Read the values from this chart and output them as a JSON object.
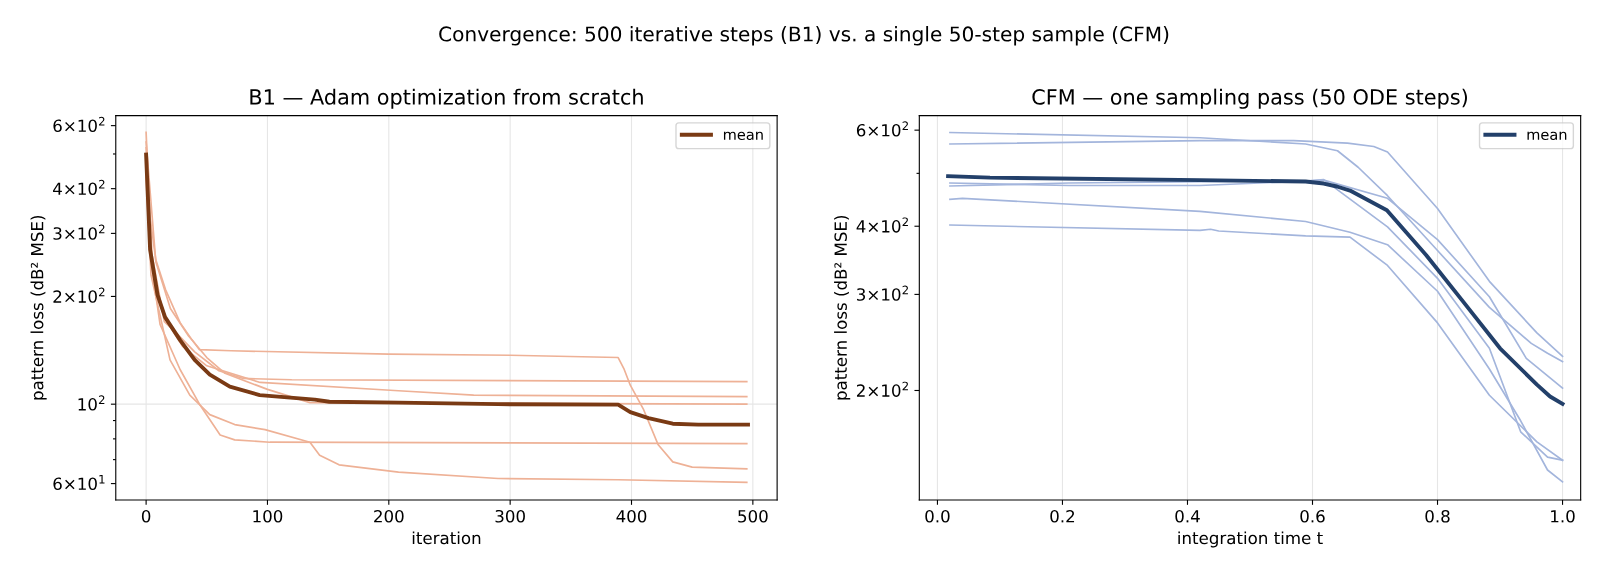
{
  "chart_data": [
    {
      "type": "line",
      "title": "B1 — Adam optimization from scratch",
      "xlabel": "iteration",
      "ylabel": "pattern loss (dB² MSE)",
      "annotations": [
        "Convergence: 500 iterative steps (B1) vs. a single 50-step sample (CFM)"
      ],
      "log": "y",
      "grid": true,
      "legend": "top right",
      "marker": "none",
      "line_style": "solid",
      "xlim": [
        -25,
        520
      ],
      "xticks": [
        0,
        100,
        200,
        300,
        400,
        500
      ],
      "ylim": [
        54,
        640
      ],
      "yticks": [
        {
          "value": 60,
          "label": "6×10$^{1}$"
        },
        {
          "value": 70,
          "label": null
        },
        {
          "value": 80,
          "label": null
        },
        {
          "value": 90,
          "label": null
        },
        {
          "value": 100,
          "label": "10$^{2}$"
        },
        {
          "value": 200,
          "label": "2×10$^{2}$"
        },
        {
          "value": 300,
          "label": "3×10$^{2}$"
        },
        {
          "value": 400,
          "label": "4×10$^{2}$"
        },
        {
          "value": 500,
          "label": null
        },
        {
          "value": 600,
          "label": "6×10$^{2}$"
        }
      ],
      "series": [
        {
          "color": "#eeb196",
          "x": [
            0,
            3,
            8,
            16,
            28,
            38,
            44,
            70,
            200,
            300,
            389,
            394,
            399,
            410,
            422,
            434,
            450,
            495
          ],
          "values": [
            575,
            338,
            253,
            209,
            169,
            151,
            142,
            141,
            138,
            137,
            135,
            125,
            113,
            96.5,
            77,
            69,
            66.7,
            66
          ]
        },
        {
          "color": "#eeb196",
          "x": [
            0,
            5,
            15,
            25,
            40,
            60,
            80,
            120,
            495
          ],
          "values": [
            520,
            260,
            170,
            158,
            140,
            124,
            118,
            117,
            115.6
          ]
        },
        {
          "color": "#eeb196",
          "x": [
            0,
            5,
            15,
            30,
            50,
            94,
            208,
            270,
            495
          ],
          "values": [
            450,
            240,
            175,
            145,
            128,
            115,
            109,
            106,
            105
          ]
        },
        {
          "color": "#eeb196",
          "x": [
            0,
            8,
            20,
            35,
            50,
            65,
            100,
            135,
            495
          ],
          "values": [
            540,
            250,
            185,
            155,
            135,
            122,
            110,
            101,
            100
          ]
        },
        {
          "color": "#eeb196",
          "x": [
            0,
            4,
            11.5,
            28,
            44,
            61,
            73,
            102,
            495
          ],
          "values": [
            470,
            250,
            167,
            125,
            100,
            82,
            79.5,
            78.3,
            77.6
          ]
        },
        {
          "color": "#eeb196",
          "x": [
            0,
            4,
            19.7,
            36,
            52.5,
            73,
            98,
            135,
            143,
            159,
            208,
            290,
            389,
            495
          ],
          "values": [
            430,
            230,
            133,
            106,
            93.5,
            87.7,
            84.9,
            78.3,
            72,
            67.7,
            64.6,
            62,
            61.5,
            60.5
          ]
        },
        {
          "name": "mean",
          "color": "#7a3a14",
          "x": [
            0,
            3.3,
            9.4,
            15.6,
            28,
            40,
            52.5,
            69,
            93.6,
            139,
            151,
            208,
            290,
            389,
            399,
            414,
            434,
            455,
            496
          ],
          "values": [
            498,
            270,
            202,
            175,
            151,
            133,
            121,
            112,
            106,
            103,
            101.6,
            101,
            100,
            99.7,
            95,
            91.4,
            88.2,
            87.7,
            87.7
          ]
        }
      ]
    },
    {
      "type": "line",
      "title": "CFM — one sampling pass (50 ODE steps)",
      "xlabel": "integration time t",
      "ylabel": "pattern loss (dB² MSE)",
      "log": "y",
      "grid": true,
      "legend": "top right",
      "marker": "none",
      "line_style": "solid",
      "xlim": [
        -0.029,
        1.029
      ],
      "xticks": [
        {
          "value": 0,
          "label": "0.0"
        },
        0.2,
        0.4,
        0.6,
        0.8,
        {
          "value": 1,
          "label": "1.0"
        }
      ],
      "ylim": [
        126,
        638
      ],
      "yticks": [
        {
          "value": 200,
          "label": "2×10$^{2}$"
        },
        {
          "value": 300,
          "label": "3×10$^{2}$"
        },
        {
          "value": 400,
          "label": "4×10$^{2}$"
        },
        {
          "value": 500,
          "label": null
        },
        {
          "value": 600,
          "label": "6×10$^{2}$"
        }
      ],
      "series": [
        {
          "color": "#a3b5dc",
          "x": [
            0.02,
            0.42,
            0.589,
            0.64,
            0.673,
            0.72,
            0.8,
            0.883,
            0.95,
            0.976,
            1.0
          ],
          "values": [
            594,
            581,
            566,
            550,
            513,
            455,
            361,
            284,
            244,
            234,
            226
          ]
        },
        {
          "color": "#a3b5dc",
          "x": [
            0.02,
            0.42,
            0.57,
            0.656,
            0.698,
            0.72,
            0.8,
            0.883,
            0.959,
            1.0
          ],
          "values": [
            566,
            574,
            574,
            568,
            560,
            547,
            431,
            317,
            255,
            231
          ]
        },
        {
          "color": "#a3b5dc",
          "x": [
            0.02,
            0.21,
            0.42,
            0.589,
            0.618,
            0.72,
            0.8,
            0.883,
            0.942,
            1.0
          ],
          "values": [
            480,
            475,
            475,
            484,
            486,
            450,
            378,
            297,
            229,
            202
          ]
        },
        {
          "color": "#a3b5dc",
          "x": [
            0.02,
            0.21,
            0.42,
            0.589,
            0.618,
            0.72,
            0.8,
            0.883,
            0.933,
            0.976,
            1.0
          ],
          "values": [
            474,
            480,
            483,
            484,
            487,
            399,
            321,
            239,
            168,
            151,
            149
          ]
        },
        {
          "color": "#a3b5dc",
          "x": [
            0.02,
            0.04,
            0.42,
            0.589,
            0.66,
            0.72,
            0.8,
            0.883,
            0.933,
            0.976,
            1.0
          ],
          "values": [
            448,
            450,
            426,
            408,
            390,
            370,
            304,
            219,
            176,
            143,
            136
          ]
        },
        {
          "color": "#a3b5dc",
          "x": [
            0.02,
            0.42,
            0.437,
            0.45,
            0.589,
            0.66,
            0.72,
            0.8,
            0.883,
            0.959,
            1.0
          ],
          "values": [
            402,
            393,
            395,
            392,
            384,
            382,
            339,
            266,
            196,
            161,
            149
          ]
        },
        {
          "name": "mean",
          "color": "#23406a",
          "x": [
            0.017,
            0.084,
            0.42,
            0.589,
            0.618,
            0.639,
            0.66,
            0.719,
            0.782,
            0.841,
            0.9,
            0.959,
            0.98,
            1.0
          ],
          "values": [
            494,
            491,
            486,
            483,
            479,
            473,
            465,
            428,
            354,
            291,
            239,
            205,
            195,
            189
          ]
        }
      ]
    }
  ]
}
